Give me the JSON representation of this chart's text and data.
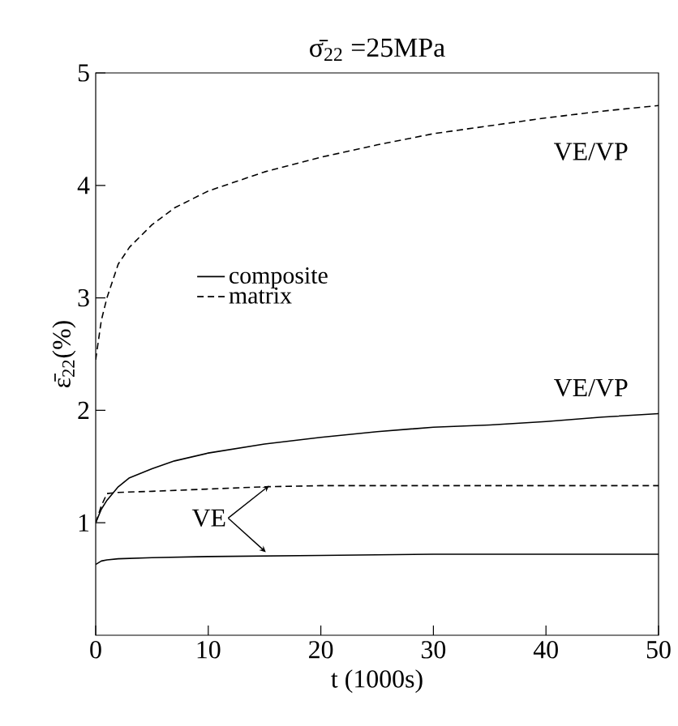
{
  "chart_data": {
    "type": "line",
    "title": "σ̄$_{22}$ =25MPa",
    "xlabel": "t (1000s)",
    "ylabel": "ε̄$_{22}$(%)",
    "xlim": [
      0,
      50
    ],
    "ylim": [
      0,
      5
    ],
    "xticks": [
      0,
      10,
      20,
      30,
      40,
      50
    ],
    "yticks": [
      1,
      2,
      3,
      4,
      5
    ],
    "grid": false,
    "legend": "left",
    "series": [
      {
        "name": "composite",
        "color": "#000000",
        "line_style": "solid",
        "x": [
          0,
          0.5,
          1,
          2,
          3,
          5,
          7,
          10,
          15,
          20,
          25,
          30,
          35,
          40,
          45,
          50
        ],
        "values": [
          1.0,
          1.12,
          1.2,
          1.32,
          1.4,
          1.48,
          1.55,
          1.62,
          1.7,
          1.76,
          1.81,
          1.85,
          1.87,
          1.9,
          1.94,
          1.97
        ]
      },
      {
        "name": "matrix",
        "color": "#000000",
        "line_style": "dashed",
        "x": [
          0,
          0.5,
          1,
          2,
          3,
          5,
          7,
          10,
          15,
          20,
          25,
          30,
          35,
          40,
          45,
          50
        ],
        "values": [
          2.45,
          2.8,
          3.0,
          3.3,
          3.45,
          3.65,
          3.8,
          3.95,
          4.12,
          4.25,
          4.36,
          4.46,
          4.53,
          4.6,
          4.66,
          4.71
        ]
      },
      {
        "color": "#000000",
        "line_style": "dashed",
        "x": [
          0,
          0.5,
          1,
          2,
          5,
          10,
          15,
          20,
          30,
          40,
          50
        ],
        "values": [
          1.0,
          1.15,
          1.26,
          1.27,
          1.28,
          1.3,
          1.32,
          1.33,
          1.33,
          1.33,
          1.33
        ]
      },
      {
        "color": "#000000",
        "line_style": "solid",
        "x": [
          0,
          0.5,
          1,
          2,
          5,
          10,
          20,
          30,
          40,
          50
        ],
        "values": [
          0.63,
          0.66,
          0.67,
          0.68,
          0.69,
          0.7,
          0.71,
          0.72,
          0.72,
          0.72
        ]
      }
    ],
    "annotations": [
      "VE/VP",
      "VE/VP",
      {
        "text": "VE",
        "x": 15.4,
        "y": 1.33
      }
    ]
  }
}
